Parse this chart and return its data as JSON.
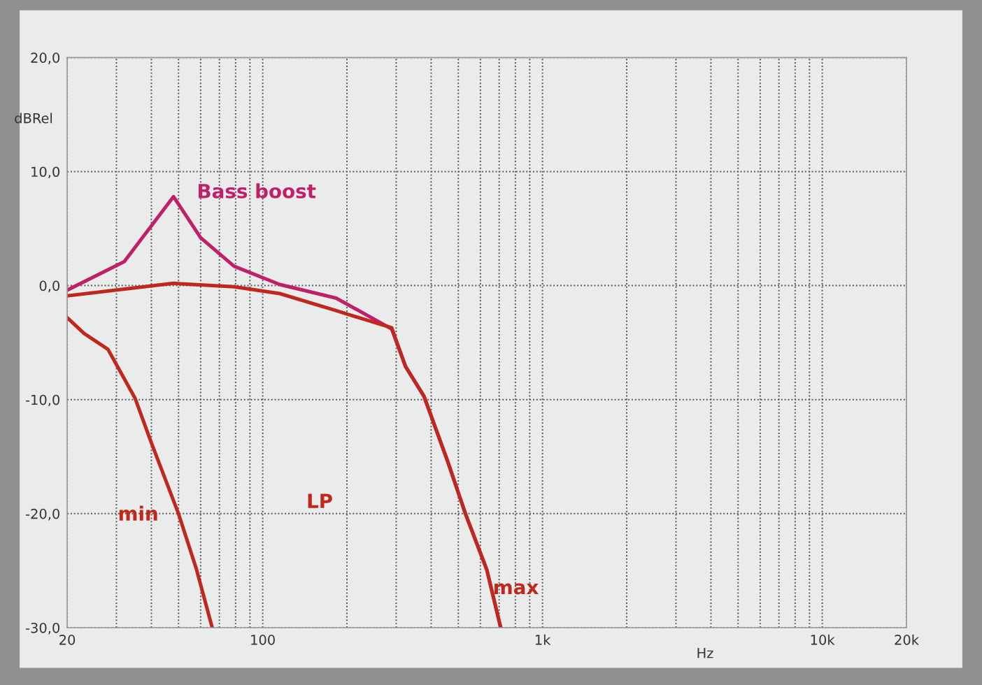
{
  "chart_data": {
    "type": "line",
    "ylabel": "dBRel",
    "xlabel": "Hz",
    "log": "x",
    "xlim": [
      20,
      20000
    ],
    "ylim": [
      -30,
      20
    ],
    "xticks": [
      20,
      {
        "value": 30,
        "label": null
      },
      {
        "value": 40,
        "label": null
      },
      {
        "value": 50,
        "label": null
      },
      {
        "value": 60,
        "label": null
      },
      {
        "value": 70,
        "label": null
      },
      {
        "value": 80,
        "label": null
      },
      {
        "value": 90,
        "label": null
      },
      100,
      {
        "value": 200,
        "label": null
      },
      {
        "value": 300,
        "label": null
      },
      {
        "value": 400,
        "label": null
      },
      {
        "value": 500,
        "label": null
      },
      {
        "value": 600,
        "label": null
      },
      {
        "value": 700,
        "label": null
      },
      {
        "value": 800,
        "label": null
      },
      {
        "value": 900,
        "label": null
      },
      {
        "value": 1000,
        "label": "1k"
      },
      {
        "value": 2000,
        "label": null
      },
      {
        "value": 3000,
        "label": null
      },
      {
        "value": 4000,
        "label": null
      },
      {
        "value": 5000,
        "label": null
      },
      {
        "value": 6000,
        "label": null
      },
      {
        "value": 7000,
        "label": null
      },
      {
        "value": 8000,
        "label": null
      },
      {
        "value": 9000,
        "label": null
      },
      {
        "value": 10000,
        "label": "10k"
      },
      {
        "value": 20000,
        "label": "20k"
      }
    ],
    "yticks": [
      {
        "value": 20,
        "label": "20,0"
      },
      {
        "value": 10,
        "label": "10,0"
      },
      {
        "value": 0,
        "label": "0,0"
      },
      {
        "value": -10,
        "label": "-10,0"
      },
      {
        "value": -20,
        "label": "-20,0"
      },
      {
        "value": -30,
        "label": "-30,0"
      }
    ],
    "grid": true,
    "legend": false,
    "marker": "none",
    "line_style": "solid",
    "annotations": [
      "LP"
    ],
    "series": [
      {
        "name": "Bass boost",
        "color": "#c0206a",
        "x": [
          20,
          32,
          48,
          60,
          79,
          115,
          183,
          289,
          324,
          377,
          458,
          532,
          632,
          709
        ],
        "values": [
          -0.4,
          2.1,
          7.8,
          4.2,
          1.7,
          0.1,
          -1.1,
          -3.8,
          -7.1,
          -9.7,
          -15.4,
          -20.1,
          -24.9,
          -30
        ]
      },
      {
        "name": "max",
        "color": "#c0281e",
        "x": [
          20,
          48,
          79,
          115,
          183,
          289,
          324,
          377,
          458,
          532,
          632,
          709
        ],
        "values": [
          -0.9,
          0.2,
          -0.1,
          -0.7,
          -2.2,
          -3.7,
          -7.1,
          -9.7,
          -15.4,
          -20.1,
          -24.9,
          -30
        ]
      },
      {
        "name": "min",
        "color": "#c0281e",
        "x": [
          20,
          23,
          28,
          35,
          40,
          50,
          58,
          66
        ],
        "values": [
          -2.8,
          -4.2,
          -5.6,
          -9.9,
          -13.8,
          -20.0,
          -24.9,
          -30
        ]
      }
    ]
  }
}
